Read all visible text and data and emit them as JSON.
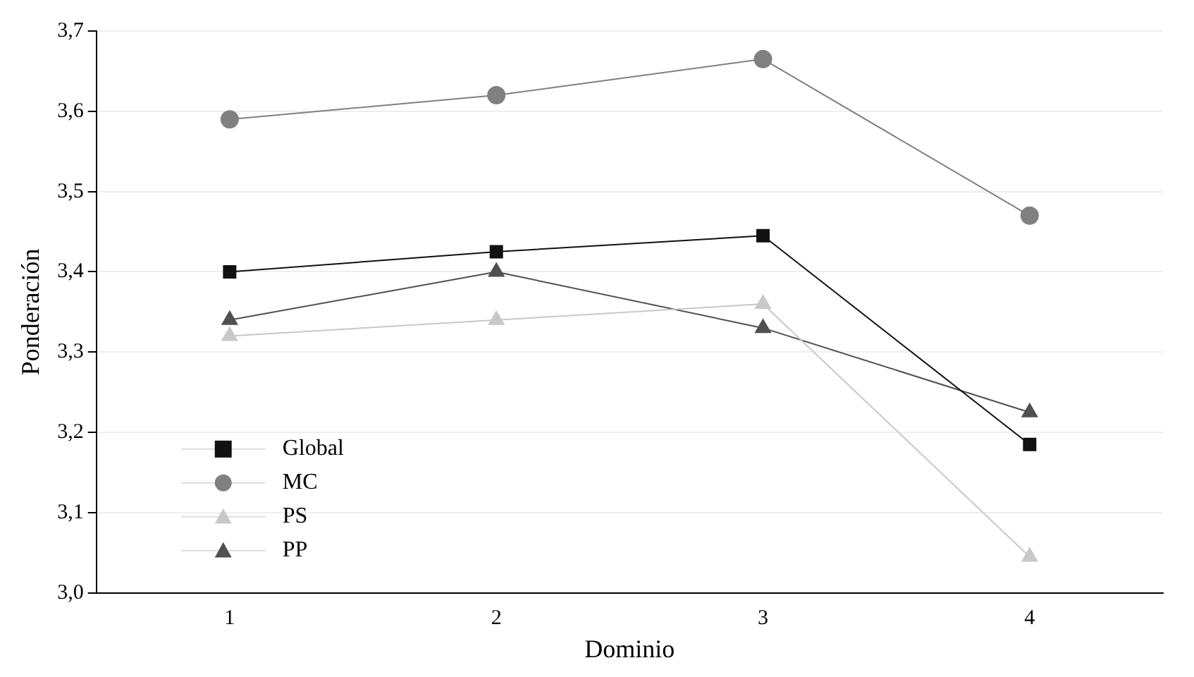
{
  "chart_data": {
    "type": "line",
    "xlabel": "Dominio",
    "ylabel": "Ponderación",
    "categories": [
      "1",
      "2",
      "3",
      "4"
    ],
    "series": [
      {
        "name": "Global",
        "color": "#111111",
        "marker": "square",
        "values": [
          3.4,
          3.425,
          3.445,
          3.185
        ]
      },
      {
        "name": "MC",
        "color": "#808080",
        "marker": "circle",
        "values": [
          3.59,
          3.62,
          3.665,
          3.47
        ]
      },
      {
        "name": "PS",
        "color": "#c8c8c8",
        "marker": "triangle",
        "values": [
          3.32,
          3.34,
          3.36,
          3.045
        ]
      },
      {
        "name": "PP",
        "color": "#505050",
        "marker": "triangle",
        "values": [
          3.34,
          3.4,
          3.33,
          3.225
        ]
      }
    ],
    "ylim": [
      3.0,
      3.7
    ],
    "yticks": [
      {
        "value": 3.0,
        "label": "3,0"
      },
      {
        "value": 3.1,
        "label": "3,1"
      },
      {
        "value": 3.2,
        "label": "3,2"
      },
      {
        "value": 3.3,
        "label": "3,3"
      },
      {
        "value": 3.4,
        "label": "3,4"
      },
      {
        "value": 3.5,
        "label": "3,5"
      },
      {
        "value": 3.6,
        "label": "3,6"
      },
      {
        "value": 3.7,
        "label": "3,7"
      }
    ],
    "grid": "y",
    "legend": "bottom left"
  }
}
